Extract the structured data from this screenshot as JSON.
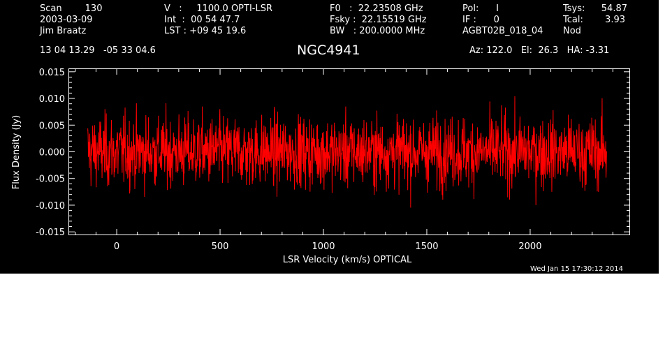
{
  "header": {
    "col1": [
      "Scan        130",
      "2003-03-09",
      "Jim Braatz"
    ],
    "col2": [
      "V   :     1100.0 OPTI-LSR",
      "Int  :  00 54 47.7",
      "LST : +09 45 19.6"
    ],
    "col3": [
      "F0   :  22.23508 GHz",
      "Fsky :  22.15519 GHz",
      "BW   : 200.0000 MHz"
    ],
    "col4": [
      "Pol:      I",
      "IF :      0",
      "AGBT02B_018_04"
    ],
    "col5": [
      "Tsys:",
      "Tcal:",
      "Nod"
    ],
    "col6": [
      "54.87",
      "3.93",
      ""
    ],
    "coords": "13 04 13.29   -05 33 04.6",
    "source": "NGC4941",
    "azelha": "Az: 122.0   El:  26.3   HA: -3.31",
    "timestamp": "Wed Jan 15 17:30:12 2014"
  },
  "chart_data": {
    "type": "line",
    "title": "NGC4941",
    "xlabel": "LSR Velocity (km/s) OPTICAL",
    "ylabel": "Flux Density (Jy)",
    "xlim": [
      -230,
      2480
    ],
    "ylim": [
      -0.0155,
      0.0155
    ],
    "xticks": [
      0,
      500,
      1000,
      1500,
      2000
    ],
    "xtick_labels": [
      "0",
      "500",
      "1000",
      "1500",
      "2000"
    ],
    "yticks": [
      -0.015,
      -0.01,
      -0.005,
      0.0,
      0.005,
      0.01,
      0.015
    ],
    "ytick_labels": [
      "-0.015",
      "-0.010",
      "-0.005",
      "0.000",
      "0.005",
      "0.010",
      "0.015"
    ],
    "series": [
      {
        "color": "#ff0000",
        "x_range": [
          -140,
          2370
        ],
        "n_points": 1600,
        "mean": 0.0,
        "rms": 0.0033
      }
    ],
    "background": "#000000",
    "axis_color": "#ffffff",
    "grid": false
  }
}
